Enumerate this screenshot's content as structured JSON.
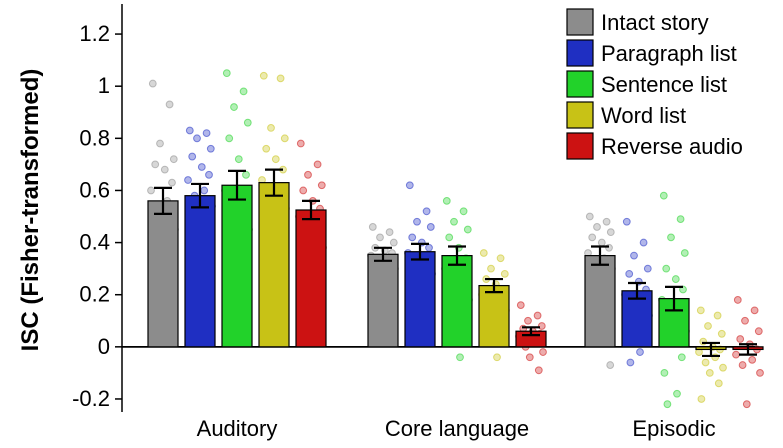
{
  "chart_data": {
    "type": "bar",
    "ylabel": "ISC (Fisher-transformed)",
    "xlabel": "",
    "ylim": [
      -0.25,
      1.3
    ],
    "yticks": [
      -0.2,
      0,
      0.2,
      0.4,
      0.6,
      0.8,
      1,
      1.2
    ],
    "ytick_labels": [
      "-0.2",
      "0",
      "0.2",
      "0.4",
      "0.6",
      "0.8",
      "1",
      "1.2"
    ],
    "categories": [
      "Auditory",
      "Core language",
      "Episodic"
    ],
    "legend_position": "top-right",
    "series": [
      {
        "name": "Intact story",
        "color": "#8c8c8c",
        "values": [
          0.56,
          0.355,
          0.35
        ],
        "errors": [
          0.05,
          0.025,
          0.035
        ],
        "points": [
          [
            1.01,
            0.93,
            0.78,
            0.72,
            0.7,
            0.68,
            0.63,
            0.6,
            0.56,
            0.5,
            0.45,
            0.42,
            0.38,
            0.36,
            0.33,
            0.3,
            0.25,
            0.2
          ],
          [
            0.46,
            0.44,
            0.42,
            0.4,
            0.38,
            0.37,
            0.36,
            0.35,
            0.34,
            0.32,
            0.3,
            0.28,
            0.26,
            0.24,
            0.22,
            0.2,
            0.15,
            0.12
          ],
          [
            0.5,
            0.48,
            0.46,
            0.44,
            0.42,
            0.4,
            0.38,
            0.36,
            0.34,
            0.32,
            0.3,
            0.28,
            0.25,
            0.22,
            0.18,
            0.12,
            -0.07
          ]
        ]
      },
      {
        "name": "Paragraph list",
        "color": "#1f2fc2",
        "values": [
          0.58,
          0.365,
          0.215
        ],
        "errors": [
          0.045,
          0.03,
          0.03
        ],
        "points": [
          [
            0.83,
            0.82,
            0.8,
            0.76,
            0.73,
            0.69,
            0.66,
            0.64,
            0.6,
            0.58,
            0.54,
            0.5,
            0.46,
            0.43,
            0.37,
            0.34,
            0.19
          ],
          [
            0.62,
            0.52,
            0.48,
            0.46,
            0.42,
            0.4,
            0.38,
            0.36,
            0.34,
            0.32,
            0.28,
            0.24,
            0.2,
            0.16,
            0.12,
            0.1
          ],
          [
            0.48,
            0.4,
            0.35,
            0.3,
            0.28,
            0.25,
            0.22,
            0.2,
            0.17,
            0.14,
            0.12,
            0.1,
            0.06,
            0.02,
            -0.02,
            -0.06
          ]
        ]
      },
      {
        "name": "Sentence list",
        "color": "#22d22a",
        "values": [
          0.62,
          0.35,
          0.185
        ],
        "errors": [
          0.055,
          0.035,
          0.045
        ],
        "points": [
          [
            1.05,
            0.98,
            0.92,
            0.86,
            0.8,
            0.72,
            0.66,
            0.6,
            0.55,
            0.5,
            0.45,
            0.38,
            0.34,
            0.3,
            0.22,
            0.16,
            0.08
          ],
          [
            0.56,
            0.52,
            0.48,
            0.45,
            0.42,
            0.38,
            0.34,
            0.3,
            0.26,
            0.22,
            0.18,
            0.12,
            0.08,
            0.04,
            -0.04
          ],
          [
            0.58,
            0.49,
            0.42,
            0.36,
            0.3,
            0.26,
            0.22,
            0.18,
            0.14,
            0.1,
            0.06,
            0.02,
            -0.04,
            -0.1,
            -0.18,
            -0.22
          ]
        ]
      },
      {
        "name": "Word list",
        "color": "#c8c216",
        "values": [
          0.63,
          0.235,
          -0.01
        ],
        "errors": [
          0.05,
          0.025,
          0.025
        ],
        "points": [
          [
            1.04,
            1.03,
            0.84,
            0.8,
            0.76,
            0.72,
            0.68,
            0.64,
            0.6,
            0.57,
            0.53,
            0.5,
            0.44,
            0.4,
            0.33,
            0.2
          ],
          [
            0.36,
            0.34,
            0.3,
            0.28,
            0.26,
            0.24,
            0.22,
            0.2,
            0.18,
            0.16,
            0.14,
            0.1,
            0.06,
            0.02,
            -0.04
          ],
          [
            0.14,
            0.12,
            0.08,
            0.05,
            0.02,
            0.0,
            -0.01,
            -0.02,
            -0.04,
            -0.06,
            -0.08,
            -0.1,
            -0.14,
            -0.2
          ]
        ]
      },
      {
        "name": "Reverse audio",
        "color": "#cc1212",
        "values": [
          0.525,
          0.06,
          -0.01
        ],
        "errors": [
          0.035,
          0.015,
          0.02
        ],
        "points": [
          [
            0.78,
            0.7,
            0.66,
            0.62,
            0.6,
            0.56,
            0.53,
            0.5,
            0.46,
            0.42,
            0.38,
            0.33,
            0.28,
            0.22
          ],
          [
            0.16,
            0.12,
            0.1,
            0.08,
            0.07,
            0.06,
            0.05,
            0.04,
            0.02,
            0.0,
            -0.02,
            -0.04,
            -0.09
          ],
          [
            0.18,
            0.14,
            0.1,
            0.06,
            0.03,
            0.01,
            -0.01,
            -0.03,
            -0.05,
            -0.07,
            -0.1,
            -0.22
          ]
        ]
      }
    ]
  }
}
